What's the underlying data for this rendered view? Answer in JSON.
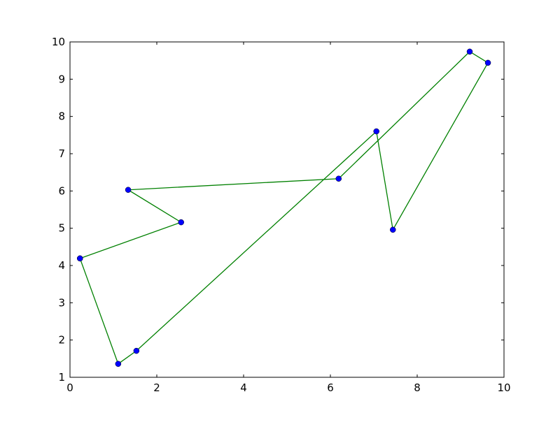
{
  "chart_data": {
    "type": "line",
    "title": "",
    "xlabel": "",
    "ylabel": "",
    "xlim": [
      0,
      10
    ],
    "ylim": [
      1,
      10
    ],
    "xticks": [
      "0",
      "2",
      "4",
      "6",
      "8",
      "10"
    ],
    "yticks": [
      "1",
      "2",
      "3",
      "4",
      "5",
      "6",
      "7",
      "8",
      "9",
      "10"
    ],
    "grid": false,
    "line_color": "#008000",
    "marker_color": "#0000ff",
    "series": [
      {
        "x": [
          0.23,
          2.56,
          1.34,
          6.19,
          9.21,
          9.63,
          7.44,
          7.06,
          1.53,
          1.11,
          0.23
        ],
        "y": [
          4.19,
          5.16,
          6.03,
          6.33,
          9.74,
          9.44,
          4.96,
          7.6,
          1.71,
          1.36,
          4.19
        ]
      }
    ]
  }
}
